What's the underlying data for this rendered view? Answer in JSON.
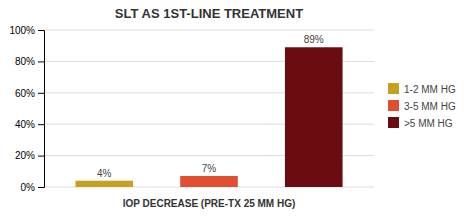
{
  "chart_data": {
    "type": "bar",
    "title": "SLT AS 1ST-LINE TREATMENT",
    "xlabel": "IOP DECREASE (PRE-TX 25 MM HG)",
    "categories": [
      "1-2 MM HG",
      "3-5 MM HG",
      ">5 MM HG"
    ],
    "values": [
      4,
      7,
      89
    ],
    "value_labels": [
      "4%",
      "7%",
      "89%"
    ],
    "colors": [
      "#c8a020",
      "#e05030",
      "#6b0c10"
    ],
    "ylim": [
      0,
      100
    ],
    "yticks": [
      {
        "value": 0,
        "label": "0%"
      },
      {
        "value": 20,
        "label": "20%"
      },
      {
        "value": 40,
        "label": "40%"
      },
      {
        "value": 60,
        "label": "60%"
      },
      {
        "value": 80,
        "label": "80%"
      },
      {
        "value": 100,
        "label": "100%"
      }
    ],
    "grid": true,
    "legend": "right",
    "data_labels": true,
    "tick_labels": "y"
  }
}
